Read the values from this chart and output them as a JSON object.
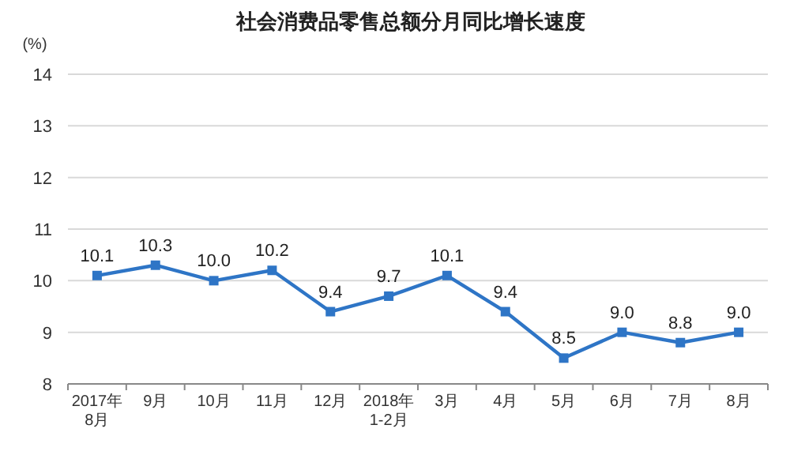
{
  "chart_data": {
    "type": "line",
    "title": "社会消费品零售总额分月同比增长速度",
    "ylabel": "(%)",
    "categories": [
      "2017年\n8月",
      "9月",
      "10月",
      "11月",
      "12月",
      "2018年\n1-2月",
      "3月",
      "4月",
      "5月",
      "6月",
      "7月",
      "8月"
    ],
    "series": [
      {
        "color": "#2e75c6",
        "values": [
          10.1,
          10.3,
          10.0,
          10.2,
          9.4,
          9.7,
          10.1,
          9.4,
          8.5,
          9.0,
          8.8,
          9.0
        ],
        "value_labels": [
          "10.1",
          "10.3",
          "10.0",
          "10.2",
          "9.4",
          "9.7",
          "10.1",
          "9.4",
          "8.5",
          "9.0",
          "8.8",
          "9.0"
        ]
      }
    ],
    "ylim": [
      8,
      14
    ],
    "yticks": [
      8,
      9,
      10,
      11,
      12,
      13,
      14
    ],
    "grid": "y",
    "marker": "square",
    "line_style": "solid"
  }
}
